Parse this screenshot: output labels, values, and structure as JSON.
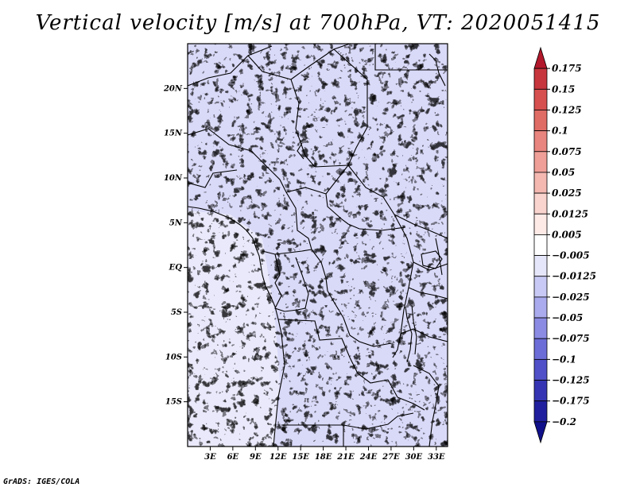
{
  "title": "Vertical velocity [m/s] at 700hPa, VT: 2020051415",
  "credit": "GrADS: IGES/COLA",
  "map": {
    "variable": "Vertical velocity",
    "units": "m/s",
    "level": "700hPa",
    "valid_time": "2020051415",
    "lon_range": [
      0,
      34.5
    ],
    "lat_range": [
      -20,
      25
    ],
    "lat_ticks": [
      {
        "value": 20,
        "label": "20N"
      },
      {
        "value": 15,
        "label": "15N"
      },
      {
        "value": 10,
        "label": "10N"
      },
      {
        "value": 5,
        "label": "5N"
      },
      {
        "value": 0,
        "label": "EQ"
      },
      {
        "value": -5,
        "label": "5S"
      },
      {
        "value": -10,
        "label": "10S"
      },
      {
        "value": -15,
        "label": "15S"
      }
    ],
    "lon_ticks": [
      {
        "value": 3,
        "label": "3E"
      },
      {
        "value": 6,
        "label": "6E"
      },
      {
        "value": 9,
        "label": "9E"
      },
      {
        "value": 12,
        "label": "12E"
      },
      {
        "value": 15,
        "label": "15E"
      },
      {
        "value": 18,
        "label": "18E"
      },
      {
        "value": 21,
        "label": "21E"
      },
      {
        "value": 24,
        "label": "24E"
      },
      {
        "value": 27,
        "label": "27E"
      },
      {
        "value": 30,
        "label": "30E"
      },
      {
        "value": 33,
        "label": "33E"
      }
    ]
  },
  "colorbar": {
    "labels": [
      "0.175",
      "0.15",
      "0.125",
      "0.1",
      "0.075",
      "0.05",
      "0.025",
      "0.0125",
      "0.005",
      "-0.005",
      "-0.0125",
      "-0.025",
      "-0.05",
      "-0.075",
      "-0.1",
      "-0.125",
      "-0.175",
      "-0.2"
    ],
    "colors": [
      "#b2182b",
      "#c8363d",
      "#d6504f",
      "#e06c66",
      "#e8857e",
      "#ef9f97",
      "#f4b8b1",
      "#f9d3cd",
      "#fde9e6",
      "#ffffff",
      "#e6e6fb",
      "#c9c9f5",
      "#aaaaee",
      "#8b8be4",
      "#6d6dd8",
      "#5050c8",
      "#3535b4",
      "#20209e",
      "#10108a"
    ]
  }
}
